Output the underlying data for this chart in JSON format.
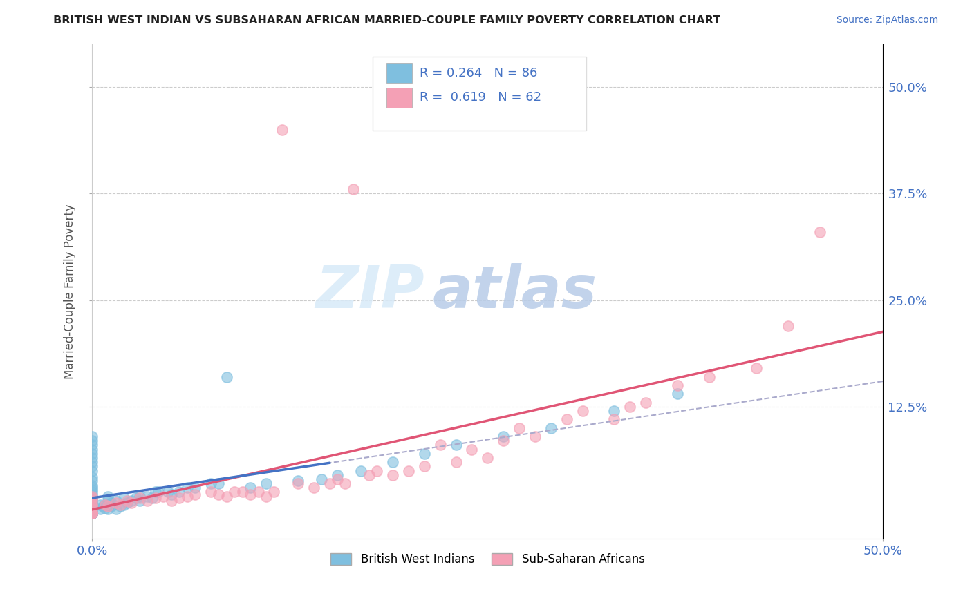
{
  "title": "BRITISH WEST INDIAN VS SUBSAHARAN AFRICAN MARRIED-COUPLE FAMILY POVERTY CORRELATION CHART",
  "source": "Source: ZipAtlas.com",
  "ylabel": "Married-Couple Family Poverty",
  "xlim": [
    0.0,
    0.5
  ],
  "ylim": [
    -0.03,
    0.55
  ],
  "ytick_labels": [
    "12.5%",
    "25.0%",
    "37.5%",
    "50.0%"
  ],
  "ytick_values": [
    0.125,
    0.25,
    0.375,
    0.5
  ],
  "color_bwi": "#7fbfdf",
  "color_ssa": "#f4a0b5",
  "color_bwi_line": "#4472c4",
  "color_ssa_line": "#e05575",
  "color_dashed": "#aaaacc",
  "background_color": "#ffffff",
  "grid_color": "#cccccc",
  "watermark_zip": "ZIP",
  "watermark_atlas": "atlas",
  "legend_label1": "British West Indians",
  "legend_label2": "Sub-Saharan Africans",
  "bwi_x": [
    0.0,
    0.0,
    0.0,
    0.0,
    0.0,
    0.0,
    0.0,
    0.0,
    0.0,
    0.0,
    0.0,
    0.0,
    0.0,
    0.0,
    0.0,
    0.0,
    0.0,
    0.0,
    0.0,
    0.0,
    0.0,
    0.0,
    0.0,
    0.0,
    0.0,
    0.0,
    0.0,
    0.0,
    0.0,
    0.0,
    0.0,
    0.0,
    0.0,
    0.0,
    0.0,
    0.0,
    0.0,
    0.0,
    0.0,
    0.0,
    0.005,
    0.005,
    0.007,
    0.008,
    0.01,
    0.01,
    0.01,
    0.01,
    0.012,
    0.012,
    0.013,
    0.015,
    0.015,
    0.018,
    0.02,
    0.02,
    0.022,
    0.025,
    0.028,
    0.03,
    0.03,
    0.035,
    0.038,
    0.042,
    0.048,
    0.05,
    0.055,
    0.065,
    0.075,
    0.085,
    0.1,
    0.11,
    0.13,
    0.145,
    0.155,
    0.17,
    0.19,
    0.21,
    0.23,
    0.26,
    0.29,
    0.33,
    0.37,
    0.04,
    0.06,
    0.08
  ],
  "bwi_y": [
    0.0,
    0.0,
    0.0,
    0.0,
    0.0,
    0.0,
    0.0,
    0.0,
    0.0,
    0.0,
    0.0,
    0.0,
    0.0,
    0.0,
    0.005,
    0.005,
    0.008,
    0.01,
    0.01,
    0.012,
    0.015,
    0.015,
    0.018,
    0.02,
    0.022,
    0.025,
    0.028,
    0.03,
    0.033,
    0.038,
    0.042,
    0.05,
    0.055,
    0.06,
    0.065,
    0.07,
    0.075,
    0.08,
    0.085,
    0.09,
    0.005,
    0.01,
    0.008,
    0.006,
    0.005,
    0.01,
    0.015,
    0.02,
    0.008,
    0.012,
    0.01,
    0.005,
    0.015,
    0.008,
    0.01,
    0.018,
    0.012,
    0.015,
    0.018,
    0.015,
    0.02,
    0.02,
    0.018,
    0.025,
    0.025,
    0.022,
    0.025,
    0.03,
    0.035,
    0.16,
    0.03,
    0.035,
    0.038,
    0.04,
    0.045,
    0.05,
    0.06,
    0.07,
    0.08,
    0.09,
    0.1,
    0.12,
    0.14,
    0.025,
    0.03,
    0.035
  ],
  "ssa_x": [
    0.0,
    0.0,
    0.0,
    0.0,
    0.0,
    0.0,
    0.0,
    0.0,
    0.0,
    0.0,
    0.008,
    0.01,
    0.015,
    0.018,
    0.022,
    0.025,
    0.03,
    0.035,
    0.04,
    0.045,
    0.05,
    0.055,
    0.06,
    0.065,
    0.075,
    0.08,
    0.085,
    0.09,
    0.095,
    0.1,
    0.105,
    0.11,
    0.115,
    0.12,
    0.13,
    0.14,
    0.15,
    0.155,
    0.16,
    0.165,
    0.175,
    0.18,
    0.19,
    0.2,
    0.21,
    0.22,
    0.23,
    0.24,
    0.25,
    0.26,
    0.27,
    0.28,
    0.3,
    0.31,
    0.33,
    0.34,
    0.35,
    0.37,
    0.39,
    0.42,
    0.44,
    0.46
  ],
  "ssa_y": [
    0.0,
    0.0,
    0.0,
    0.0,
    0.005,
    0.008,
    0.01,
    0.015,
    0.018,
    0.02,
    0.01,
    0.008,
    0.012,
    0.01,
    0.015,
    0.012,
    0.018,
    0.015,
    0.018,
    0.02,
    0.015,
    0.018,
    0.02,
    0.022,
    0.025,
    0.022,
    0.02,
    0.025,
    0.025,
    0.022,
    0.025,
    0.02,
    0.025,
    0.45,
    0.035,
    0.03,
    0.035,
    0.04,
    0.035,
    0.38,
    0.045,
    0.05,
    0.045,
    0.05,
    0.055,
    0.08,
    0.06,
    0.075,
    0.065,
    0.085,
    0.1,
    0.09,
    0.11,
    0.12,
    0.11,
    0.125,
    0.13,
    0.15,
    0.16,
    0.17,
    0.22,
    0.33
  ]
}
